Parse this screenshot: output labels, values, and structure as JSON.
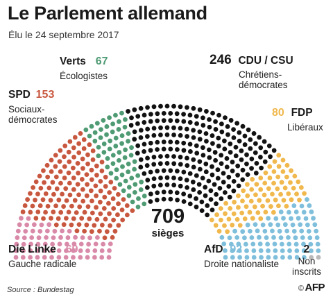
{
  "title": "Le Parlement allemand",
  "subtitle": "Élu le 24 septembre 2017",
  "total": {
    "value": "709",
    "unit": "sièges"
  },
  "source": "Source : Bundestag",
  "credit": {
    "symbol": "©",
    "name": "AFP"
  },
  "chart_data": {
    "type": "hemicycle",
    "total_seats": 709,
    "parties": [
      {
        "name": "Die Linke",
        "seats": 69,
        "label": "Gauche radicale",
        "color": "#d98aa8"
      },
      {
        "name": "SPD",
        "seats": 153,
        "label": "Sociaux-démocrates",
        "color": "#c8573f"
      },
      {
        "name": "Verts",
        "seats": 67,
        "label": "Écologistes",
        "color": "#4f9b74"
      },
      {
        "name": "CDU / CSU",
        "seats": 246,
        "label": "Chrétiens-démocrates",
        "color": "#121212"
      },
      {
        "name": "FDP",
        "seats": 80,
        "label": "Libéraux",
        "color": "#f0b84d"
      },
      {
        "name": "AfD",
        "seats": 92,
        "label": "Droite nationaliste",
        "color": "#7fbfdb"
      },
      {
        "name": "",
        "seats": 2,
        "label": "Non inscrits",
        "color": "#b9b9b9"
      }
    ]
  }
}
